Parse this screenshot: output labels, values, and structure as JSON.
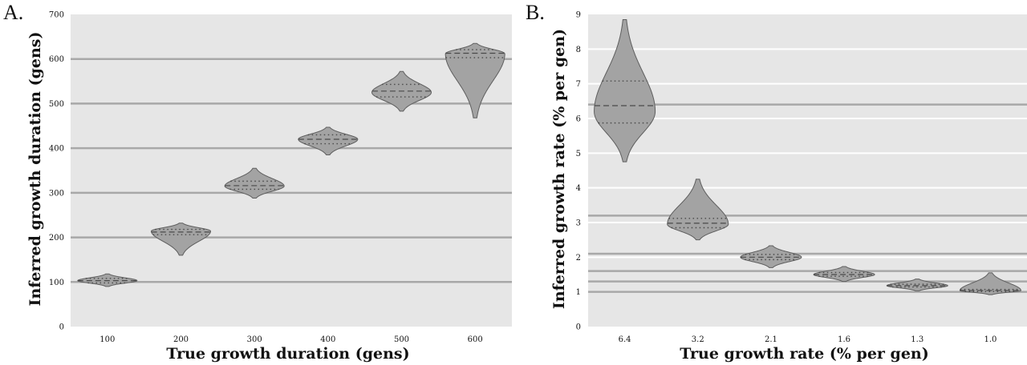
{
  "chart_data": [
    {
      "type": "violin",
      "panel_label": "A.",
      "xlabel": "True growth duration (gens)",
      "ylabel": "Inferred growth duration (gens)",
      "ylim": [
        0,
        700
      ],
      "yticks": [
        0,
        100,
        200,
        300,
        400,
        500,
        600,
        700
      ],
      "categories": [
        "100",
        "200",
        "300",
        "400",
        "500",
        "600"
      ],
      "reference_lines": [
        100,
        200,
        300,
        400,
        500,
        600
      ],
      "grid": true,
      "violins": [
        {
          "category": "100",
          "min": 90,
          "max": 118,
          "q1": 98,
          "median": 103,
          "q3": 108,
          "mode": 103
        },
        {
          "category": "200",
          "min": 160,
          "max": 232,
          "q1": 206,
          "median": 212,
          "q3": 218,
          "mode": 214
        },
        {
          "category": "300",
          "min": 288,
          "max": 355,
          "q1": 308,
          "median": 316,
          "q3": 326,
          "mode": 315
        },
        {
          "category": "400",
          "min": 385,
          "max": 447,
          "q1": 410,
          "median": 420,
          "q3": 430,
          "mode": 420
        },
        {
          "category": "500",
          "min": 483,
          "max": 572,
          "q1": 515,
          "median": 528,
          "q3": 543,
          "mode": 525
        },
        {
          "category": "600",
          "min": 468,
          "max": 635,
          "q1": 603,
          "median": 613,
          "q3": 621,
          "mode": 612
        }
      ]
    },
    {
      "type": "violin",
      "panel_label": "B.",
      "xlabel": "True growth rate (% per gen)",
      "ylabel": "Inferred growth rate (% per gen)",
      "ylim": [
        0,
        9
      ],
      "yticks": [
        0,
        1,
        2,
        3,
        4,
        5,
        6,
        7,
        8,
        9
      ],
      "categories": [
        "6.4",
        "3.2",
        "2.1",
        "1.6",
        "1.3",
        "1.0"
      ],
      "reference_lines": [
        6.4,
        3.2,
        2.1,
        1.6,
        1.3,
        1.0
      ],
      "grid": true,
      "violins": [
        {
          "category": "6.4",
          "min": 4.75,
          "max": 8.85,
          "q1": 5.87,
          "median": 6.37,
          "q3": 7.08,
          "mode": 6.2
        },
        {
          "category": "3.2",
          "min": 2.5,
          "max": 4.25,
          "q1": 2.85,
          "median": 2.98,
          "q3": 3.12,
          "mode": 2.95
        },
        {
          "category": "2.1",
          "min": 1.7,
          "max": 2.33,
          "q1": 1.93,
          "median": 2.0,
          "q3": 2.08,
          "mode": 2.0
        },
        {
          "category": "1.6",
          "min": 1.3,
          "max": 1.73,
          "q1": 1.45,
          "median": 1.5,
          "q3": 1.56,
          "mode": 1.5
        },
        {
          "category": "1.3",
          "min": 1.03,
          "max": 1.37,
          "q1": 1.14,
          "median": 1.18,
          "q3": 1.22,
          "mode": 1.18
        },
        {
          "category": "1.0",
          "min": 0.92,
          "max": 1.55,
          "q1": 1.01,
          "median": 1.04,
          "q3": 1.07,
          "mode": 1.04
        }
      ]
    }
  ]
}
